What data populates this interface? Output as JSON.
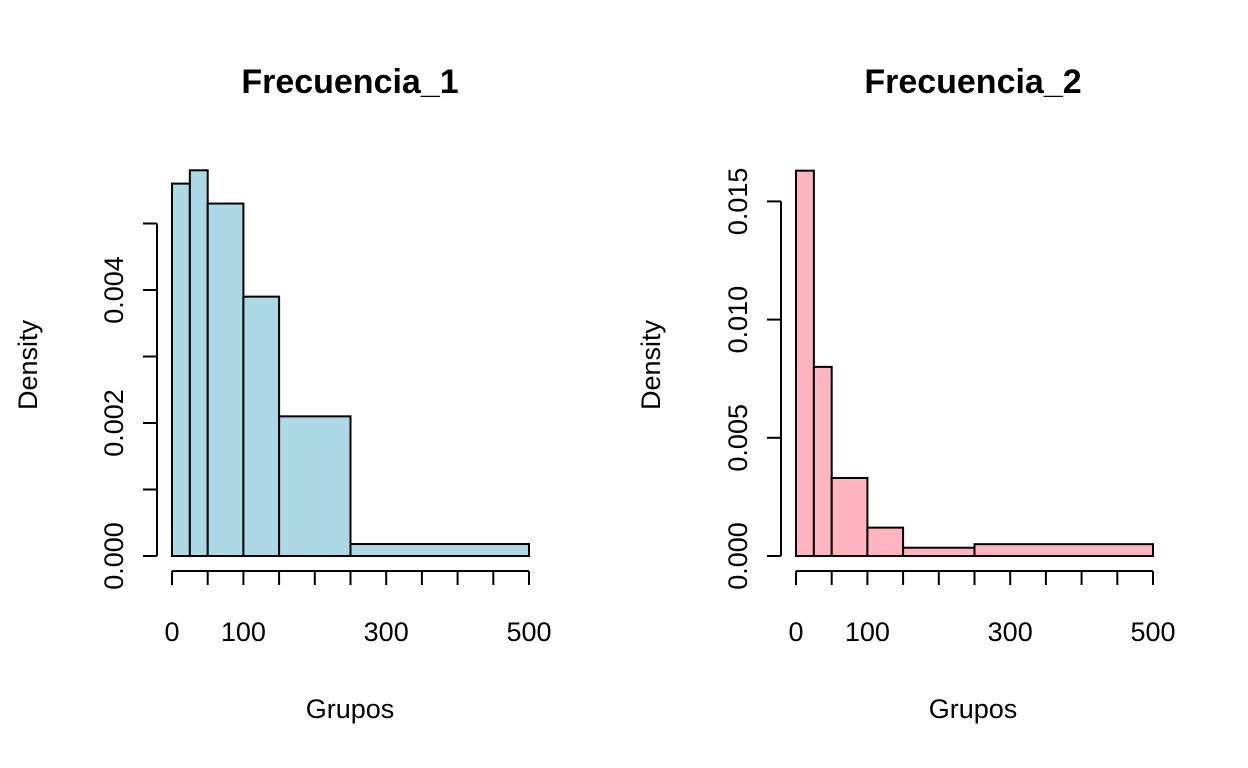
{
  "chart_data": [
    {
      "type": "bar",
      "title": "Frecuencia_1",
      "xlabel": "Grupos",
      "ylabel": "Density",
      "fill_color": "#ADD8E6",
      "xlim": [
        0,
        500
      ],
      "ylim": [
        0,
        0.005
      ],
      "x_ticks": [
        0,
        50,
        100,
        150,
        200,
        250,
        300,
        350,
        400,
        450,
        500
      ],
      "x_tick_labels": [
        {
          "value": 0,
          "label": "0"
        },
        {
          "value": 100,
          "label": "100"
        },
        {
          "value": 300,
          "label": "300"
        },
        {
          "value": 500,
          "label": "500"
        }
      ],
      "y_ticks": [
        0,
        0.001,
        0.002,
        0.003,
        0.004,
        0.005
      ],
      "y_tick_labels": [
        {
          "value": 0,
          "label": "0.000"
        },
        {
          "value": 0.002,
          "label": "0.002"
        },
        {
          "value": 0.004,
          "label": "0.004"
        }
      ],
      "bins": [
        {
          "from": 0,
          "to": 25,
          "density": 0.0056
        },
        {
          "from": 25,
          "to": 50,
          "density": 0.0058
        },
        {
          "from": 50,
          "to": 100,
          "density": 0.0053
        },
        {
          "from": 100,
          "to": 150,
          "density": 0.0039
        },
        {
          "from": 150,
          "to": 250,
          "density": 0.0021
        },
        {
          "from": 250,
          "to": 500,
          "density": 0.00018
        }
      ]
    },
    {
      "type": "bar",
      "title": "Frecuencia_2",
      "xlabel": "Grupos",
      "ylabel": "Density",
      "fill_color": "#FFB6C1",
      "xlim": [
        0,
        500
      ],
      "ylim": [
        0,
        0.015
      ],
      "x_ticks": [
        0,
        50,
        100,
        150,
        200,
        250,
        300,
        350,
        400,
        450,
        500
      ],
      "x_tick_labels": [
        {
          "value": 0,
          "label": "0"
        },
        {
          "value": 100,
          "label": "100"
        },
        {
          "value": 300,
          "label": "300"
        },
        {
          "value": 500,
          "label": "500"
        }
      ],
      "y_ticks": [
        0,
        0.005,
        0.01,
        0.015
      ],
      "y_tick_labels": [
        {
          "value": 0,
          "label": "0.000"
        },
        {
          "value": 0.005,
          "label": "0.005"
        },
        {
          "value": 0.01,
          "label": "0.010"
        },
        {
          "value": 0.015,
          "label": "0.015"
        }
      ],
      "bins": [
        {
          "from": 0,
          "to": 25,
          "density": 0.0163
        },
        {
          "from": 25,
          "to": 50,
          "density": 0.008
        },
        {
          "from": 50,
          "to": 100,
          "density": 0.0033
        },
        {
          "from": 100,
          "to": 150,
          "density": 0.0012
        },
        {
          "from": 150,
          "to": 250,
          "density": 0.00035
        },
        {
          "from": 250,
          "to": 500,
          "density": 0.0005
        }
      ]
    }
  ]
}
